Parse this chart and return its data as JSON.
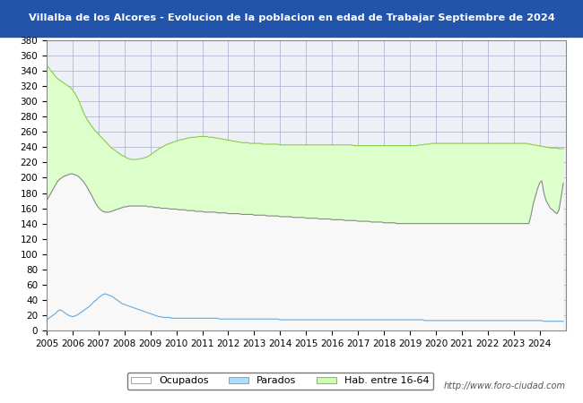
{
  "title": "Villalba de los Alcores - Evolucion de la poblacion en edad de Trabajar Septiembre de 2024",
  "title_bg": "#2255aa",
  "title_color": "#ffffff",
  "ylim": [
    0,
    380
  ],
  "yticks": [
    0,
    20,
    40,
    60,
    80,
    100,
    120,
    140,
    160,
    180,
    200,
    220,
    240,
    260,
    280,
    300,
    320,
    340,
    360,
    380
  ],
  "legend_labels": [
    "Ocupados",
    "Parados",
    "Hab. entre 16-64"
  ],
  "legend_colors": [
    "#ffffff",
    "#aaddff",
    "#ccffaa"
  ],
  "watermark": "http://www.foro-ciudad.com",
  "grid_color": "#aaaacc",
  "plot_bg": "#eef0f8",
  "hab_color_fill": "#ddffcc",
  "hab_color_line": "#88cc44",
  "parados_color_fill": "#cceeff",
  "parados_color_line": "#66aadd",
  "ocupados_color_fill": "#f8f8f8",
  "ocupados_color_line": "#888888",
  "hab_data": [
    347,
    344,
    340,
    337,
    333,
    330,
    328,
    326,
    324,
    322,
    320,
    318,
    315,
    311,
    306,
    300,
    293,
    286,
    280,
    275,
    271,
    267,
    263,
    260,
    257,
    254,
    251,
    248,
    245,
    242,
    239,
    237,
    235,
    233,
    231,
    229,
    228,
    226,
    225,
    224,
    224,
    224,
    224,
    225,
    225,
    226,
    227,
    228,
    230,
    232,
    234,
    236,
    238,
    240,
    241,
    243,
    244,
    245,
    246,
    247,
    248,
    249,
    250,
    250,
    251,
    252,
    252,
    253,
    253,
    253,
    254,
    254,
    254,
    254,
    254,
    253,
    253,
    253,
    252,
    252,
    251,
    251,
    250,
    250,
    249,
    249,
    248,
    248,
    247,
    247,
    246,
    246,
    246,
    246,
    245,
    245,
    245,
    245,
    245,
    245,
    244,
    244,
    244,
    244,
    244,
    244,
    244,
    244,
    243,
    243,
    243,
    243,
    243,
    243,
    243,
    243,
    243,
    243,
    243,
    243,
    243,
    243,
    243,
    243,
    243,
    243,
    243,
    243,
    243,
    243,
    243,
    243,
    243,
    243,
    243,
    243,
    243,
    243,
    243,
    243,
    243,
    243,
    242,
    242,
    242,
    242,
    242,
    242,
    242,
    242,
    242,
    242,
    242,
    242,
    242,
    242,
    242,
    242,
    242,
    242,
    242,
    242,
    242,
    242,
    242,
    242,
    242,
    242,
    242,
    242,
    242,
    242,
    243,
    243,
    243,
    244,
    244,
    244,
    245,
    245,
    245,
    245,
    245,
    245,
    245,
    245,
    245,
    245,
    245,
    245,
    245,
    245,
    245,
    245,
    245,
    245,
    245,
    245,
    245,
    245,
    245,
    245,
    245,
    245,
    245,
    245,
    245,
    245,
    245,
    245,
    245,
    245,
    245,
    245,
    245,
    245,
    245,
    245,
    245,
    245,
    245,
    245,
    245,
    244,
    244,
    243,
    243,
    242,
    242,
    241,
    241,
    240,
    240,
    239,
    239,
    239,
    239,
    238,
    238,
    238
  ],
  "parados_data": [
    14,
    16,
    18,
    20,
    22,
    25,
    27,
    26,
    24,
    22,
    20,
    19,
    18,
    19,
    20,
    22,
    24,
    26,
    28,
    30,
    32,
    35,
    38,
    40,
    43,
    45,
    47,
    48,
    47,
    46,
    45,
    43,
    41,
    39,
    37,
    35,
    34,
    33,
    32,
    31,
    30,
    29,
    28,
    27,
    26,
    25,
    24,
    23,
    22,
    21,
    20,
    19,
    18,
    18,
    17,
    17,
    17,
    17,
    16,
    16,
    16,
    16,
    16,
    16,
    16,
    16,
    16,
    16,
    16,
    16,
    16,
    16,
    16,
    16,
    16,
    16,
    16,
    16,
    16,
    16,
    15,
    15,
    15,
    15,
    15,
    15,
    15,
    15,
    15,
    15,
    15,
    15,
    15,
    15,
    15,
    15,
    15,
    15,
    15,
    15,
    15,
    15,
    15,
    15,
    15,
    15,
    15,
    15,
    14,
    14,
    14,
    14,
    14,
    14,
    14,
    14,
    14,
    14,
    14,
    14,
    14,
    14,
    14,
    14,
    14,
    14,
    14,
    14,
    14,
    14,
    14,
    14,
    14,
    14,
    14,
    14,
    14,
    14,
    14,
    14,
    14,
    14,
    14,
    14,
    14,
    14,
    14,
    14,
    14,
    14,
    14,
    14,
    14,
    14,
    14,
    14,
    14,
    14,
    14,
    14,
    14,
    14,
    14,
    14,
    14,
    14,
    14,
    14,
    14,
    14,
    14,
    14,
    14,
    14,
    14,
    13,
    13,
    13,
    13,
    13,
    13,
    13,
    13,
    13,
    13,
    13,
    13,
    13,
    13,
    13,
    13,
    13,
    13,
    13,
    13,
    13,
    13,
    13,
    13,
    13,
    13,
    13,
    13,
    13,
    13,
    13,
    13,
    13,
    13,
    13,
    13,
    13,
    13,
    13,
    13,
    13,
    13,
    13,
    13,
    13,
    13,
    13,
    13,
    13,
    13,
    13,
    13,
    13,
    13,
    13,
    12,
    12,
    12,
    12,
    12,
    12,
    12,
    12,
    12,
    12
  ],
  "ocupados_data": [
    170,
    175,
    180,
    185,
    190,
    195,
    198,
    200,
    202,
    203,
    204,
    205,
    205,
    204,
    203,
    201,
    198,
    195,
    191,
    186,
    181,
    176,
    170,
    165,
    161,
    158,
    156,
    155,
    155,
    155,
    156,
    157,
    158,
    159,
    160,
    161,
    162,
    162,
    163,
    163,
    163,
    163,
    163,
    163,
    163,
    163,
    163,
    162,
    162,
    162,
    161,
    161,
    161,
    160,
    160,
    160,
    160,
    159,
    159,
    159,
    159,
    158,
    158,
    158,
    158,
    157,
    157,
    157,
    157,
    156,
    156,
    156,
    156,
    155,
    155,
    155,
    155,
    155,
    155,
    154,
    154,
    154,
    154,
    154,
    153,
    153,
    153,
    153,
    153,
    153,
    152,
    152,
    152,
    152,
    152,
    152,
    151,
    151,
    151,
    151,
    151,
    151,
    150,
    150,
    150,
    150,
    150,
    150,
    149,
    149,
    149,
    149,
    149,
    149,
    148,
    148,
    148,
    148,
    148,
    148,
    147,
    147,
    147,
    147,
    147,
    147,
    146,
    146,
    146,
    146,
    146,
    146,
    145,
    145,
    145,
    145,
    145,
    145,
    144,
    144,
    144,
    144,
    144,
    144,
    143,
    143,
    143,
    143,
    143,
    143,
    142,
    142,
    142,
    142,
    142,
    142,
    141,
    141,
    141,
    141,
    141,
    141,
    140,
    140,
    140,
    140,
    140,
    140,
    140,
    140,
    140,
    140,
    140,
    140,
    140,
    140,
    140,
    140,
    140,
    140,
    140,
    140,
    140,
    140,
    140,
    140,
    140,
    140,
    140,
    140,
    140,
    140,
    140,
    140,
    140,
    140,
    140,
    140,
    140,
    140,
    140,
    140,
    140,
    140,
    140,
    140,
    140,
    140,
    140,
    140,
    140,
    140,
    140,
    140,
    140,
    140,
    140,
    140,
    140,
    140,
    140,
    140,
    140,
    140,
    150,
    165,
    175,
    185,
    193,
    196,
    180,
    170,
    165,
    160,
    158,
    155,
    153,
    158,
    175,
    193
  ]
}
